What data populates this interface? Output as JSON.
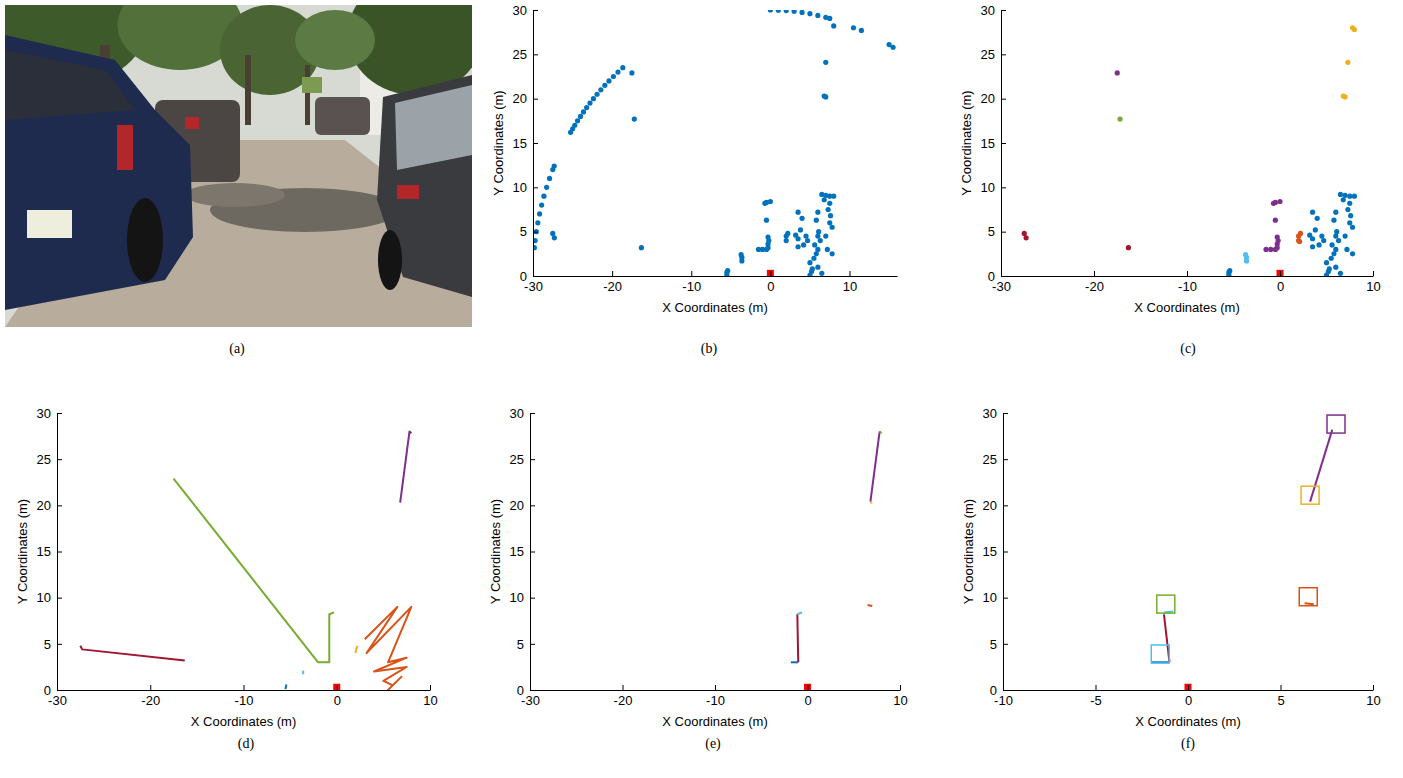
{
  "chart_data": [
    {
      "type": "image",
      "caption": "(a)"
    },
    {
      "type": "scatter",
      "caption": "(b)",
      "xlabel": "X Coordinates (m)",
      "ylabel": "Y Coordinates (m)",
      "xlim": [
        -30,
        16
      ],
      "ylim": [
        0,
        30
      ],
      "xticks": [
        -30,
        -20,
        -10,
        0,
        10
      ],
      "yticks": [
        0,
        5,
        10,
        15,
        20,
        25,
        30
      ],
      "series": [
        {
          "color": "#0072BD",
          "marker": "circle",
          "x": [
            -29.83,
            -29.73,
            -29.58,
            -29.39,
            -29.17,
            -28.91,
            -28.62,
            -28.28,
            -27.91,
            -27.5,
            -27.32,
            -25.25,
            -24.99,
            -24.72,
            -24.37,
            -24,
            -23.62,
            -23.22,
            -22.8,
            -22.36,
            -21.9,
            -21.42,
            -20.92,
            -20.4,
            -19.84,
            -19.26,
            -18.65,
            0,
            1,
            2,
            3,
            4,
            5,
            6,
            7,
            7.5,
            8,
            10.5,
            11.5,
            15,
            15.5,
            -27.5,
            -27.3,
            -17.5,
            -17.2,
            -16.3,
            7,
            6.8,
            7,
            -5.5,
            -5.5,
            -5.4,
            -3.6,
            -3.6,
            -3.7,
            -1.5,
            -1,
            -0.5,
            -0.3,
            -0.3,
            -0.2,
            -0.3,
            -0.5,
            -0.7,
            -0.5,
            0,
            2,
            2,
            2.2,
            3.2,
            3.5,
            3.5,
            3.8,
            3.5,
            4,
            4.5,
            4.7,
            4.2,
            5,
            5.3,
            5,
            5.5,
            5.8,
            6,
            5.6,
            5.2,
            6,
            6.5,
            6.5,
            7,
            7.5,
            8,
            6.8,
            7.5,
            7.3,
            7.6,
            7.5,
            7.8,
            7,
            6.3,
            6.1,
            6,
            7.2,
            7.8,
            6,
            5.8
          ],
          "y": [
            3.2,
            4,
            5,
            6,
            7,
            8,
            9,
            10,
            11,
            12,
            12.4,
            16.2,
            16.6,
            17,
            17.5,
            18,
            18.5,
            19,
            19.5,
            20,
            20.5,
            21,
            21.5,
            22,
            22.5,
            23,
            23.5,
            30,
            29.98,
            29.93,
            29.85,
            29.73,
            29.58,
            29.39,
            29.17,
            29.05,
            28.2,
            28,
            27.7,
            26.1,
            25.8,
            4.8,
            4.3,
            22.9,
            17.7,
            3.2,
            24.1,
            20.3,
            20.2,
            0.1,
            0.4,
            0.6,
            1.7,
            2.1,
            2.4,
            3,
            3,
            3,
            3.2,
            3.6,
            4,
            4.4,
            6.3,
            8.2,
            8.3,
            8.4,
            4,
            4.5,
            4.8,
            4.6,
            4.2,
            3.3,
            5.2,
            7.2,
            6.5,
            4.5,
            4,
            3.5,
            0.1,
            0.8,
            1.5,
            2,
            2.5,
            3,
            3.5,
            0.5,
            1,
            0.3,
            9.2,
            9.1,
            9,
            9,
            8.6,
            8.2,
            7.5,
            6.8,
            6,
            5.5,
            4.5,
            4,
            5,
            4.5,
            3,
            2.5,
            7.2,
            6.3
          ]
        },
        {
          "color": "#ff0000",
          "marker": "square",
          "x": [
            0
          ],
          "y": [
            0.3
          ]
        }
      ]
    },
    {
      "type": "scatter",
      "caption": "(c)",
      "xlabel": "X Coordinates (m)",
      "ylabel": "Y Coordinates (m)",
      "xlim": [
        -30,
        10
      ],
      "ylim": [
        0,
        30
      ],
      "xticks": [
        -30,
        -20,
        -10,
        0,
        10
      ],
      "yticks": [
        0,
        5,
        10,
        15,
        20,
        25,
        30
      ],
      "series": [
        {
          "color": "#0072BD",
          "marker": "circle",
          "x": [
            -5.5,
            -5.5,
            -5.4,
            3.2,
            3.5,
            3.5,
            3.8,
            3.5,
            4,
            4.5,
            4.7,
            4.2,
            5,
            5.3,
            5,
            5.5,
            5.8,
            6,
            5.6,
            5.2,
            6,
            6.5,
            6.5,
            7,
            7.5,
            8,
            6.8,
            7.5,
            7.3,
            7.6,
            7.5,
            7.8,
            7,
            6.3,
            6.1,
            6,
            7.2,
            7.8,
            6,
            5.8
          ],
          "y": [
            0.1,
            0.4,
            0.6,
            4.6,
            4.2,
            3.3,
            5.2,
            7.2,
            6.5,
            4.5,
            4,
            3.5,
            0.1,
            0.8,
            1.5,
            2,
            2.5,
            3,
            3.5,
            0.5,
            1,
            0.3,
            9.2,
            9.1,
            9,
            9,
            8.6,
            8.2,
            7.5,
            6.8,
            6,
            5.5,
            4.5,
            4,
            5,
            4.5,
            3,
            2.5,
            7.2,
            6.3
          ]
        },
        {
          "color": "#A2142F",
          "marker": "circle",
          "x": [
            -27.5,
            -27.3,
            -16.3
          ],
          "y": [
            4.8,
            4.3,
            3.2
          ]
        },
        {
          "color": "#7E2F8E",
          "marker": "circle",
          "x": [
            -17.5,
            -1.5,
            -1,
            -0.5,
            -0.3,
            -0.3,
            -0.2,
            -0.3,
            -0.5,
            -0.7,
            -0.5,
            0
          ],
          "y": [
            22.9,
            3,
            3,
            3,
            3.2,
            3.6,
            4,
            4.4,
            6.3,
            8.2,
            8.3,
            8.4
          ]
        },
        {
          "color": "#77AC30",
          "marker": "circle",
          "x": [
            -17.2
          ],
          "y": [
            17.7
          ]
        },
        {
          "color": "#4DBEEE",
          "marker": "circle",
          "x": [
            -3.6,
            -3.6,
            -3.7
          ],
          "y": [
            1.7,
            2.1,
            2.4
          ]
        },
        {
          "color": "#D95319",
          "marker": "circle",
          "x": [
            2,
            2,
            2.2,
            2.1
          ],
          "y": [
            4,
            4.5,
            4.8,
            3.9
          ]
        },
        {
          "color": "#EDB120",
          "marker": "circle",
          "x": [
            7.8,
            8,
            7.3,
            6.8,
            7
          ],
          "y": [
            28,
            27.8,
            24.1,
            20.3,
            20.2
          ]
        },
        {
          "color": "#ff0000",
          "marker": "square",
          "x": [
            0
          ],
          "y": [
            0.3
          ]
        }
      ]
    },
    {
      "type": "line",
      "caption": "(d)",
      "xlabel": "X Coordinates (m)",
      "ylabel": "Y Coordinates (m)",
      "xlim": [
        -30,
        10
      ],
      "ylim": [
        0,
        30
      ],
      "xticks": [
        -30,
        -20,
        -10,
        0,
        10
      ],
      "yticks": [
        0,
        5,
        10,
        15,
        20,
        25,
        30
      ],
      "series": [
        {
          "color": "#A2142F",
          "x": [
            -27.5,
            -27.3,
            -16.3
          ],
          "y": [
            4.8,
            4.4,
            3.2
          ]
        },
        {
          "color": "#77AC30",
          "x": [
            -17.5,
            -2,
            -0.8,
            -0.8,
            -0.3
          ],
          "y": [
            22.9,
            3,
            3,
            8.2,
            8.4
          ]
        },
        {
          "color": "#4DBEEE",
          "x": [
            -3.6,
            -3.6
          ],
          "y": [
            1.7,
            2.1
          ]
        },
        {
          "color": "#0072BD",
          "x": [
            -5.5,
            -5.4
          ],
          "y": [
            0.1,
            0.6
          ]
        },
        {
          "color": "#EDB120",
          "x": [
            2,
            2.2
          ],
          "y": [
            4,
            4.8
          ]
        },
        {
          "color": "#7E2F8E",
          "x": [
            6.8,
            7.8,
            8
          ],
          "y": [
            20.3,
            28,
            27.8
          ]
        },
        {
          "color": "#D95319",
          "x": [
            3,
            6.5,
            3.2,
            8,
            5.5,
            7.5,
            4,
            7.5,
            5,
            6,
            5.5,
            7
          ],
          "y": [
            5.5,
            9,
            4,
            9,
            3,
            3.5,
            2,
            2.5,
            1,
            0.5,
            0,
            1.5
          ]
        },
        {
          "type": "scatter",
          "color": "#ff0000",
          "marker": "square",
          "x": [
            0
          ],
          "y": [
            0.3
          ]
        }
      ]
    },
    {
      "type": "line",
      "caption": "(e)",
      "xlabel": "X Coordinates (m)",
      "ylabel": "Y Coordinates (m)",
      "xlim": [
        -30,
        10
      ],
      "ylim": [
        0,
        30
      ],
      "xticks": [
        -30,
        -20,
        -10,
        0,
        10
      ],
      "yticks": [
        0,
        5,
        10,
        15,
        20,
        25,
        30
      ],
      "series": [
        {
          "color": "#0072BD",
          "x": [
            -1.8,
            -1
          ],
          "y": [
            3,
            3
          ]
        },
        {
          "color": "#A2142F",
          "x": [
            -1,
            -1.1
          ],
          "y": [
            3,
            8.2
          ]
        },
        {
          "color": "#4DBEEE",
          "x": [
            -1.1,
            -0.6
          ],
          "y": [
            8.2,
            8.4
          ]
        },
        {
          "color": "#D95319",
          "x": [
            6.5,
            7
          ],
          "y": [
            9.2,
            9.1
          ]
        },
        {
          "color": "#7E2F8E",
          "x": [
            6.8,
            7.8
          ],
          "y": [
            20.4,
            28
          ]
        },
        {
          "color": "#EDB120",
          "x": [
            6.8,
            7
          ],
          "y": [
            20.3,
            20.3
          ]
        },
        {
          "color": "#77AC30",
          "x": [
            7.8,
            8
          ],
          "y": [
            28,
            27.8
          ]
        },
        {
          "type": "scatter",
          "color": "#ff0000",
          "marker": "square",
          "x": [
            0
          ],
          "y": [
            0.3
          ]
        }
      ]
    },
    {
      "type": "line",
      "caption": "(f)",
      "xlabel": "X Coordinates (m)",
      "ylabel": "Y Coordinates (m)",
      "xlim": [
        -10,
        10
      ],
      "ylim": [
        0,
        30
      ],
      "xticks": [
        -10,
        -5,
        0,
        5,
        10
      ],
      "yticks": [
        0,
        5,
        10,
        15,
        20,
        25,
        30
      ],
      "series": [
        {
          "color": "#0072BD",
          "x": [
            -2,
            -1
          ],
          "y": [
            3,
            3
          ]
        },
        {
          "color": "#A2142F",
          "x": [
            -1,
            -1.3
          ],
          "y": [
            3,
            8.2
          ]
        },
        {
          "color": "#4DBEEE",
          "x": [
            -1.3,
            -0.8
          ],
          "y": [
            8.4,
            8.5
          ]
        },
        {
          "color": "#D95319",
          "x": [
            6.3,
            6.8
          ],
          "y": [
            9.4,
            9.3
          ]
        },
        {
          "color": "#7E2F8E",
          "x": [
            6.6,
            7.8
          ],
          "y": [
            20.4,
            28.2
          ]
        },
        {
          "type": "scatter",
          "color": "#4DBEEE",
          "marker": "open-square",
          "x": [
            -1.5
          ],
          "y": [
            3.9
          ]
        },
        {
          "type": "scatter",
          "color": "#77AC30",
          "marker": "open-square",
          "x": [
            -1.2
          ],
          "y": [
            9.3
          ]
        },
        {
          "type": "scatter",
          "color": "#D95319",
          "marker": "open-square",
          "x": [
            6.5
          ],
          "y": [
            10.1
          ]
        },
        {
          "type": "scatter",
          "color": "#EDB120",
          "marker": "open-square",
          "x": [
            6.6
          ],
          "y": [
            21.1
          ]
        },
        {
          "type": "scatter",
          "color": "#7E2F8E",
          "marker": "open-square",
          "x": [
            8
          ],
          "y": [
            28.8
          ]
        },
        {
          "type": "scatter",
          "color": "#ff0000",
          "marker": "square",
          "x": [
            0
          ],
          "y": [
            0.3
          ]
        }
      ]
    }
  ]
}
